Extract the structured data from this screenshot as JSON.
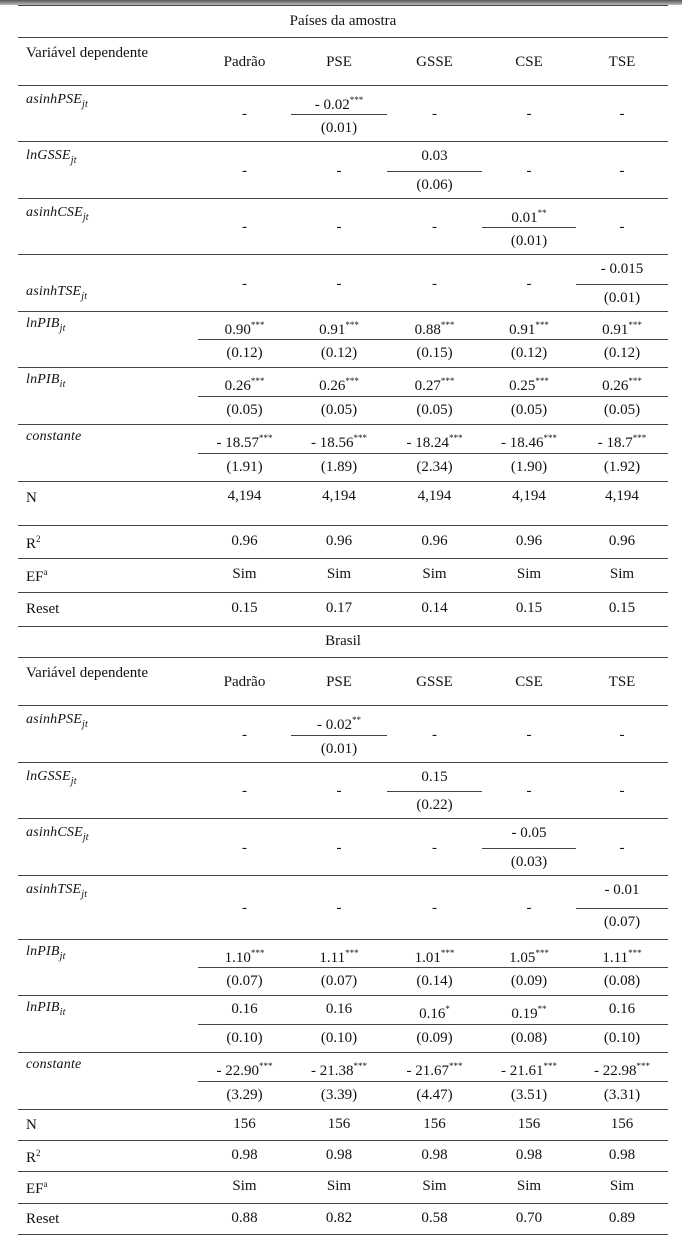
{
  "columns": [
    "Padrão",
    "PSE",
    "GSSE",
    "CSE",
    "TSE"
  ],
  "header_label": "Variável dependente",
  "panels": [
    {
      "title": "Países da amostra",
      "var_rows": [
        {
          "label": "asinhPSE",
          "sub": "jt",
          "col": 1,
          "coef": "- 0.02",
          "stars": "***",
          "se": "(0.01)"
        },
        {
          "label": "lnGSSE",
          "sub": "jt",
          "col": 2,
          "coef": "0.03",
          "stars": "",
          "se": "(0.06)"
        },
        {
          "label": "asinhCSE",
          "sub": "jt",
          "col": 3,
          "coef": "0.01",
          "stars": "**",
          "se": "(0.01)"
        },
        {
          "label": "asinhTSE",
          "sub": "jt",
          "col": 4,
          "coef": "- 0.015",
          "stars": "",
          "se": "(0.01)"
        }
      ],
      "full_rows": [
        {
          "label": "lnPIB",
          "sub": "jt",
          "coefs": [
            "0.90",
            "0.91",
            "0.88",
            "0.91",
            "0.91"
          ],
          "stars": [
            "***",
            "***",
            "***",
            "***",
            "***"
          ],
          "se": [
            "(0.12)",
            "(0.12)",
            "(0.15)",
            "(0.12)",
            "(0.12)"
          ]
        },
        {
          "label": "lnPIB",
          "sub": "it",
          "coefs": [
            "0.26",
            "0.26",
            "0.27",
            "0.25",
            "0.26"
          ],
          "stars": [
            "***",
            "***",
            "***",
            "***",
            "***"
          ],
          "se": [
            "(0.05)",
            "(0.05)",
            "(0.05)",
            "(0.05)",
            "(0.05)"
          ]
        },
        {
          "label": "constante",
          "sub": "",
          "coefs": [
            "- 18.57",
            "- 18.56",
            "- 18.24",
            "- 18.46",
            "- 18.7"
          ],
          "stars": [
            "***",
            "***",
            "***",
            "***",
            "***"
          ],
          "se": [
            "(1.91)",
            "(1.89)",
            "(2.34)",
            "(1.90)",
            "(1.92)"
          ]
        }
      ],
      "stat_rows": [
        {
          "label": "N",
          "sup": "",
          "values": [
            "4,194",
            "4,194",
            "4,194",
            "4,194",
            "4,194"
          ]
        },
        {
          "label": "R",
          "sup": "2",
          "values": [
            "0.96",
            "0.96",
            "0.96",
            "0.96",
            "0.96"
          ]
        },
        {
          "label": "EF",
          "sup": "a",
          "values": [
            "Sim",
            "Sim",
            "Sim",
            "Sim",
            "Sim"
          ]
        },
        {
          "label": "Reset",
          "sup": "",
          "values": [
            "0.15",
            "0.17",
            "0.14",
            "0.15",
            "0.15"
          ]
        }
      ]
    },
    {
      "title": "Brasil",
      "var_rows": [
        {
          "label": "asinhPSE",
          "sub": "jt",
          "col": 1,
          "coef": "- 0.02",
          "stars": "**",
          "se": "(0.01)"
        },
        {
          "label": "lnGSSE",
          "sub": "jt",
          "col": 2,
          "coef": "0.15",
          "stars": "",
          "se": "(0.22)"
        },
        {
          "label": "asinhCSE",
          "sub": "jt",
          "col": 3,
          "coef": "- 0.05",
          "stars": "",
          "se": "(0.03)"
        },
        {
          "label": "asinhTSE",
          "sub": "jt",
          "col": 4,
          "coef": "- 0.01",
          "stars": "",
          "se": "(0.07)"
        }
      ],
      "full_rows": [
        {
          "label": "lnPIB",
          "sub": "jt",
          "coefs": [
            "1.10",
            "1.11",
            "1.01",
            "1.05",
            "1.11"
          ],
          "stars": [
            "***",
            "***",
            "***",
            "***",
            "***"
          ],
          "se": [
            "(0.07)",
            "(0.07)",
            "(0.14)",
            "(0.09)",
            "(0.08)"
          ]
        },
        {
          "label": "lnPIB",
          "sub": "it",
          "coefs": [
            "0.16",
            "0.16",
            "0.16",
            "0.19",
            "0.16"
          ],
          "stars": [
            "",
            "",
            "*",
            "**",
            ""
          ],
          "se": [
            "(0.10)",
            "(0.10)",
            "(0.09)",
            "(0.08)",
            "(0.10)"
          ]
        },
        {
          "label": "constante",
          "sub": "",
          "coefs": [
            "- 22.90",
            "- 21.38",
            "- 21.67",
            "- 21.61",
            "- 22.98"
          ],
          "stars": [
            "***",
            "***",
            "***",
            "***",
            "***"
          ],
          "se": [
            "(3.29)",
            "(3.39)",
            "(4.47)",
            "(3.51)",
            "(3.31)"
          ]
        }
      ],
      "stat_rows": [
        {
          "label": "N",
          "sup": "",
          "values": [
            "156",
            "156",
            "156",
            "156",
            "156"
          ]
        },
        {
          "label": "R",
          "sup": "2",
          "values": [
            "0.98",
            "0.98",
            "0.98",
            "0.98",
            "0.98"
          ]
        },
        {
          "label": "EF",
          "sup": "a",
          "values": [
            "Sim",
            "Sim",
            "Sim",
            "Sim",
            "Sim"
          ]
        },
        {
          "label": "Reset",
          "sup": "",
          "values": [
            "0.88",
            "0.82",
            "0.58",
            "0.70",
            "0.89"
          ]
        }
      ]
    }
  ],
  "dash": "-"
}
